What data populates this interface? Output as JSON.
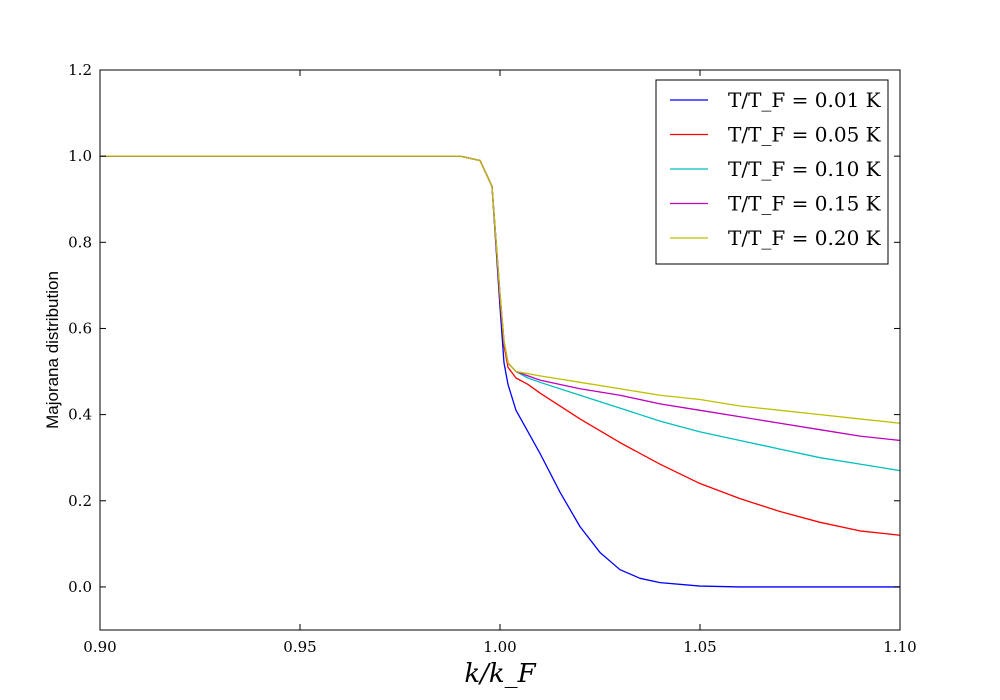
{
  "chart_data": {
    "type": "line",
    "title": "",
    "xlabel": "k/k_F",
    "ylabel": "Majorana distribution",
    "xlim": [
      0.9,
      1.1
    ],
    "ylim": [
      -0.1,
      1.2
    ],
    "xticks": [
      "0.90",
      "0.95",
      "1.00",
      "1.05",
      "1.10"
    ],
    "yticks": [
      "0.0",
      "0.2",
      "0.4",
      "0.6",
      "0.8",
      "1.0",
      "1.2"
    ],
    "legend_position": "top-right",
    "grid": false,
    "series": [
      {
        "name": "T/T_F = 0.01 K",
        "color": "#0000ff",
        "x": [
          0.9,
          0.95,
          0.99,
          0.995,
          0.998,
          1.0,
          1.001,
          1.002,
          1.004,
          1.007,
          1.01,
          1.015,
          1.02,
          1.025,
          1.03,
          1.035,
          1.04,
          1.05,
          1.06,
          1.07,
          1.08,
          1.1
        ],
        "y": [
          1.0,
          1.0,
          1.0,
          0.99,
          0.93,
          0.65,
          0.52,
          0.47,
          0.41,
          0.36,
          0.31,
          0.22,
          0.14,
          0.08,
          0.04,
          0.02,
          0.01,
          0.002,
          0.0,
          0.0,
          0.0,
          0.0
        ]
      },
      {
        "name": "T/T_F = 0.05 K",
        "color": "#ff0000",
        "x": [
          0.9,
          0.95,
          0.99,
          0.995,
          0.998,
          1.0,
          1.001,
          1.002,
          1.004,
          1.007,
          1.01,
          1.02,
          1.03,
          1.04,
          1.05,
          1.06,
          1.07,
          1.08,
          1.09,
          1.1
        ],
        "y": [
          1.0,
          1.0,
          1.0,
          0.99,
          0.93,
          0.67,
          0.56,
          0.51,
          0.485,
          0.47,
          0.45,
          0.39,
          0.335,
          0.285,
          0.24,
          0.205,
          0.175,
          0.15,
          0.13,
          0.12
        ]
      },
      {
        "name": "T/T_F = 0.10 K",
        "color": "#00bfbf",
        "x": [
          0.9,
          0.95,
          0.99,
          0.995,
          0.998,
          1.0,
          1.001,
          1.002,
          1.004,
          1.007,
          1.01,
          1.02,
          1.03,
          1.04,
          1.05,
          1.06,
          1.07,
          1.08,
          1.09,
          1.1
        ],
        "y": [
          1.0,
          1.0,
          1.0,
          0.99,
          0.93,
          0.68,
          0.57,
          0.52,
          0.5,
          0.485,
          0.475,
          0.445,
          0.415,
          0.385,
          0.36,
          0.34,
          0.32,
          0.3,
          0.285,
          0.27
        ]
      },
      {
        "name": "T/T_F = 0.15 K",
        "color": "#bf00bf",
        "x": [
          0.9,
          0.95,
          0.99,
          0.995,
          0.998,
          1.0,
          1.001,
          1.002,
          1.004,
          1.007,
          1.01,
          1.02,
          1.03,
          1.04,
          1.05,
          1.06,
          1.07,
          1.08,
          1.09,
          1.1
        ],
        "y": [
          1.0,
          1.0,
          1.0,
          0.99,
          0.93,
          0.68,
          0.57,
          0.52,
          0.5,
          0.49,
          0.48,
          0.46,
          0.445,
          0.425,
          0.41,
          0.395,
          0.38,
          0.365,
          0.35,
          0.34
        ]
      },
      {
        "name": "T/T_F = 0.20 K",
        "color": "#bfbf00",
        "x": [
          0.9,
          0.95,
          0.99,
          0.995,
          0.998,
          1.0,
          1.001,
          1.002,
          1.004,
          1.007,
          1.01,
          1.02,
          1.03,
          1.04,
          1.05,
          1.06,
          1.07,
          1.08,
          1.09,
          1.1
        ],
        "y": [
          1.0,
          1.0,
          1.0,
          0.99,
          0.93,
          0.68,
          0.57,
          0.52,
          0.5,
          0.495,
          0.49,
          0.475,
          0.46,
          0.445,
          0.435,
          0.42,
          0.41,
          0.4,
          0.39,
          0.38
        ]
      }
    ]
  }
}
